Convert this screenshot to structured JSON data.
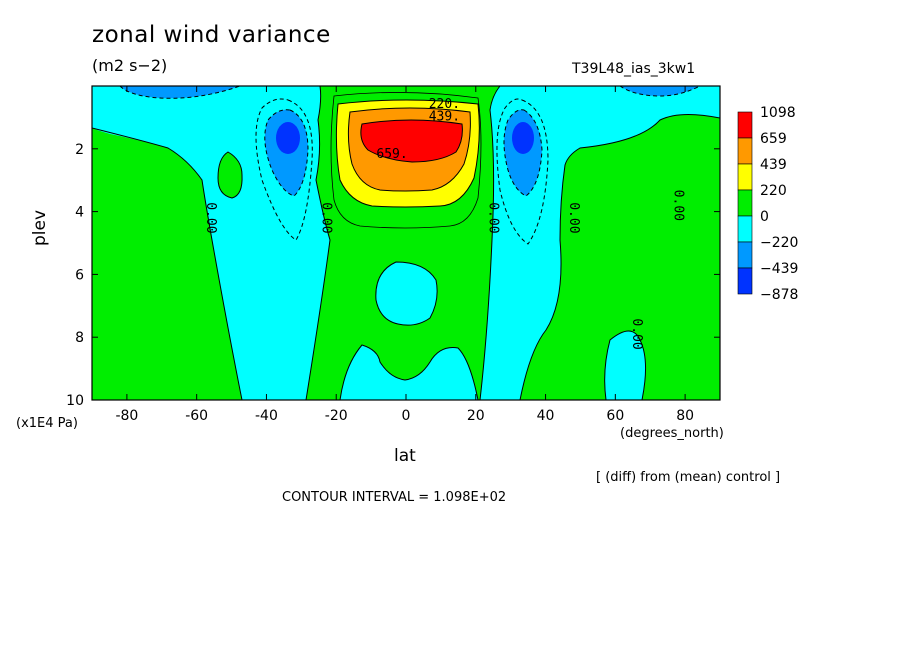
{
  "chart_data": {
    "type": "heatmap",
    "title": "zonal wind variance",
    "units": "(m2 s−2)",
    "run_id": "T39L48_ias_3kw1",
    "xlabel": "lat",
    "xunit": "(degrees_north)",
    "ylabel": "plev",
    "yunit": "(x1E4 Pa)",
    "xlim": [
      -90,
      90
    ],
    "ylim": [
      10,
      0
    ],
    "xticks": [
      "-80",
      "-60",
      "-40",
      "-20",
      "0",
      "20",
      "40",
      "60",
      "80"
    ],
    "xtick_values": [
      -80,
      -60,
      -40,
      -20,
      0,
      20,
      40,
      60,
      80
    ],
    "yticks": [
      "2",
      "4",
      "6",
      "8",
      "10"
    ],
    "ytick_values": [
      2,
      4,
      6,
      8,
      10
    ],
    "colorbar": {
      "labels": [
        "1098",
        "659",
        "439",
        "220",
        "0",
        "−220",
        "−439",
        "−878"
      ],
      "colors": [
        "#ff0000",
        "#ff9900",
        "#ffff00",
        "#00ee00",
        "#00ffff",
        "#0099ff",
        "#0033ff"
      ]
    },
    "contour_labels": [
      {
        "text": "220.",
        "lat": 11,
        "plev": 0.7
      },
      {
        "text": "439.",
        "lat": 11,
        "plev": 1.1
      },
      {
        "text": "659.",
        "lat": -4,
        "plev": 2.3
      },
      {
        "text": "0.00",
        "lat": -57,
        "plev": 4.2,
        "rotated": true
      },
      {
        "text": "0.00",
        "lat": -24,
        "plev": 4.2,
        "rotated": true
      },
      {
        "text": "0.00",
        "lat": 24,
        "plev": 4.2,
        "rotated": true
      },
      {
        "text": "0.00",
        "lat": 47,
        "plev": 4.2,
        "rotated": true
      },
      {
        "text": "0.00",
        "lat": 77,
        "plev": 3.8,
        "rotated": true
      },
      {
        "text": "0.00",
        "lat": 65,
        "plev": 7.9,
        "rotated": true
      }
    ],
    "footnote": "[ (diff) from (mean) control ]",
    "contour_interval": "CONTOUR INTERVAL = 1.098E+02"
  }
}
